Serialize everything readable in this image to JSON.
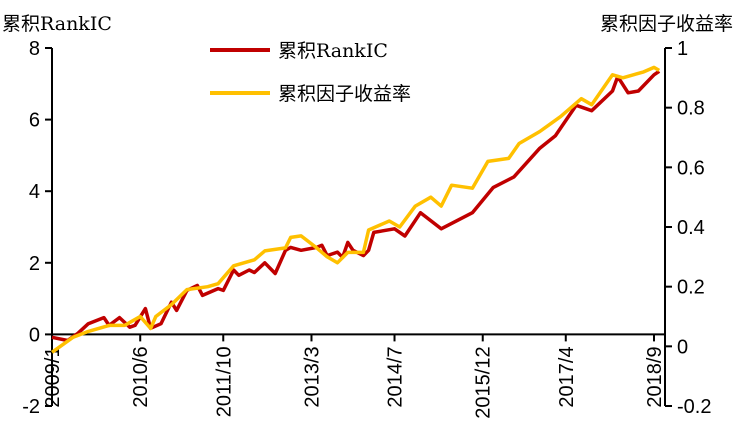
{
  "chart_data": {
    "type": "line",
    "title": "",
    "ylabel_left": "累积RankIC",
    "ylabel_right": "累积因子收益率",
    "ylim_left": [
      -2,
      8
    ],
    "ylim_right": [
      -0.2,
      1
    ],
    "yticks_left": [
      "8",
      "6",
      "4",
      "2",
      "0",
      "-2"
    ],
    "yticks_right": [
      "1",
      "0.8",
      "0.6",
      "0.4",
      "0.2",
      "0",
      "-0.2"
    ],
    "xticks": [
      "2009/1",
      "2010/6",
      "2011/10",
      "2013/3",
      "2014/7",
      "2015/12",
      "2017/4",
      "2018/9"
    ],
    "grid": false,
    "legend_placement": "top-center",
    "series": [
      {
        "name": "累积RankIC",
        "axis": "left",
        "color": "#C00000",
        "x": [
          "2009/1",
          "2009/4",
          "2009/6",
          "2009/8",
          "2009/11",
          "2009/12",
          "2010/2",
          "2010/4",
          "2010/5",
          "2010/7",
          "2010/8",
          "2010/10",
          "2010/12",
          "2011/1",
          "2011/3",
          "2011/5",
          "2011/6",
          "2011/9",
          "2011/10",
          "2011/12",
          "2012/1",
          "2012/3",
          "2012/4",
          "2012/6",
          "2012/8",
          "2012/10",
          "2012/11",
          "2013/1",
          "2013/4",
          "2013/5",
          "2013/6",
          "2013/8",
          "2013/9",
          "2013/10",
          "2013/11",
          "2014/1",
          "2014/2",
          "2014/3",
          "2014/7",
          "2014/9",
          "2014/12",
          "2015/4",
          "2015/10",
          "2016/2",
          "2016/6",
          "2016/11",
          "2017/2",
          "2017/6",
          "2017/9",
          "2018/1",
          "2018/2",
          "2018/4",
          "2018/6",
          "2018/9",
          "2018/10"
        ],
        "values": [
          -0.08,
          -0.17,
          0.03,
          0.3,
          0.47,
          0.25,
          0.47,
          0.2,
          0.25,
          0.72,
          0.17,
          0.3,
          0.9,
          0.67,
          1.23,
          1.37,
          1.09,
          1.28,
          1.23,
          1.8,
          1.65,
          1.8,
          1.73,
          2.0,
          1.7,
          2.35,
          2.43,
          2.35,
          2.43,
          2.49,
          2.2,
          2.3,
          2.15,
          2.57,
          2.35,
          2.2,
          2.35,
          2.85,
          2.95,
          2.75,
          3.4,
          2.95,
          3.4,
          4.1,
          4.4,
          5.2,
          5.55,
          6.4,
          6.25,
          6.8,
          7.2,
          6.75,
          6.8,
          7.25,
          7.35
        ]
      },
      {
        "name": "累积因子收益率",
        "axis": "right",
        "color": "#FFC000",
        "x": [
          "2009/1",
          "2009/5",
          "2009/8",
          "2009/12",
          "2010/3",
          "2010/6",
          "2010/8",
          "2010/9",
          "2010/12",
          "2011/3",
          "2011/7",
          "2011/9",
          "2011/12",
          "2012/4",
          "2012/6",
          "2012/10",
          "2012/11",
          "2013/1",
          "2013/4",
          "2013/6",
          "2013/8",
          "2013/10",
          "2014/1",
          "2014/2",
          "2014/6",
          "2014/8",
          "2014/11",
          "2015/2",
          "2015/4",
          "2015/6",
          "2015/10",
          "2016/1",
          "2016/5",
          "2016/7",
          "2016/11",
          "2017/3",
          "2017/7",
          "2017/9",
          "2018/1",
          "2018/3",
          "2018/7",
          "2018/9",
          "2018/10"
        ],
        "values": [
          -0.02,
          0.03,
          0.05,
          0.07,
          0.07,
          0.1,
          0.06,
          0.1,
          0.14,
          0.19,
          0.2,
          0.21,
          0.27,
          0.29,
          0.32,
          0.33,
          0.365,
          0.37,
          0.33,
          0.3,
          0.28,
          0.315,
          0.315,
          0.39,
          0.42,
          0.4,
          0.47,
          0.5,
          0.47,
          0.54,
          0.53,
          0.62,
          0.63,
          0.68,
          0.72,
          0.77,
          0.83,
          0.81,
          0.91,
          0.9,
          0.92,
          0.935,
          0.925
        ]
      }
    ]
  }
}
